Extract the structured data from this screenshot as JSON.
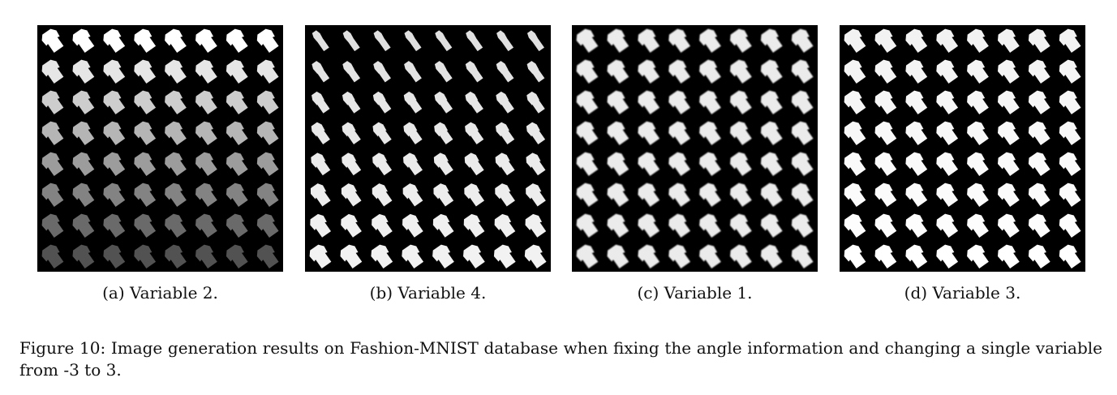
{
  "figure": {
    "panels": [
      {
        "caption": "(a) Variable 2.",
        "grid": [
          8,
          8
        ],
        "thumb_color": "#ffffff",
        "style": {
          "brightness_from_top": 1.0,
          "brightness_to_bottom": 0.32,
          "shape": "shirt",
          "slimness": 0.0
        }
      },
      {
        "caption": "(b) Variable 4.",
        "grid": [
          8,
          8
        ],
        "thumb_color": "#ffffff",
        "style": {
          "brightness_from_top": 0.88,
          "brightness_to_bottom": 0.95,
          "shape": "shirt",
          "slimness_from_top": 1.0,
          "slimness_to_bottom": 0.0
        }
      },
      {
        "caption": "(c) Variable 1.",
        "grid": [
          8,
          8
        ],
        "thumb_color": "#ffffff",
        "style": {
          "brightness_from_top": 0.92,
          "brightness_to_bottom": 0.92,
          "shape": "shirt",
          "slimness": 0.0,
          "blur": true
        }
      },
      {
        "caption": "(d) Variable 3.",
        "grid": [
          8,
          8
        ],
        "thumb_color": "#ffffff",
        "style": {
          "brightness_from_top": 0.95,
          "brightness_to_bottom": 1.0,
          "shape": "shirt",
          "slimness": 0.0
        }
      }
    ],
    "caption": "Figure 10: Image generation results on Fashion-MNIST database when fixing the angle information and changing a single variable from -3 to 3."
  }
}
